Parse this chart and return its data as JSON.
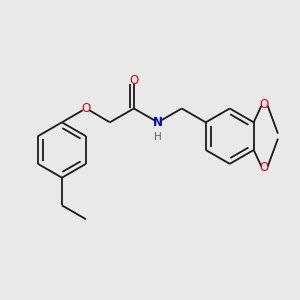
{
  "background_color": "#e9e9e9",
  "bond_color": "#1a1a1a",
  "atom_colors": {
    "O": "#e00000",
    "N": "#0000e0",
    "H": "#606060"
  },
  "figsize": [
    3.0,
    3.0
  ],
  "dpi": 100
}
